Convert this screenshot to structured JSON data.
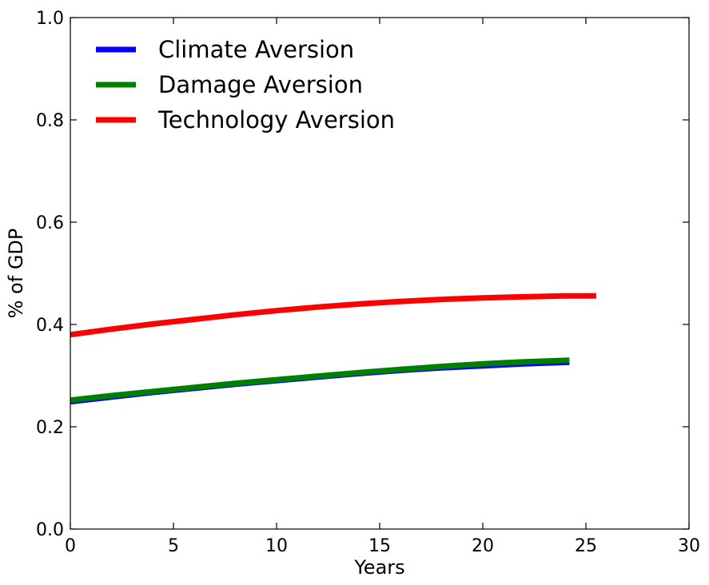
{
  "chart_data": {
    "type": "line",
    "title": "",
    "xlabel": "Years",
    "ylabel": "% of GDP",
    "xlim": [
      0,
      30
    ],
    "ylim": [
      0.0,
      1.0
    ],
    "xticks": [
      "0",
      "5",
      "10",
      "15",
      "20",
      "25",
      "30"
    ],
    "yticks": [
      "0.0",
      "0.2",
      "0.4",
      "0.6",
      "0.8",
      "1.0"
    ],
    "grid": false,
    "legend": "top-left",
    "series": [
      {
        "name": "Climate Aversion",
        "color": "#0000ff",
        "x": [
          0,
          2,
          4,
          6,
          8,
          10,
          12,
          14,
          16,
          18,
          20,
          22,
          24.2
        ],
        "y": [
          0.246,
          0.255,
          0.264,
          0.272,
          0.28,
          0.287,
          0.294,
          0.301,
          0.307,
          0.312,
          0.316,
          0.32,
          0.323
        ]
      },
      {
        "name": "Damage Aversion",
        "color": "#008000",
        "x": [
          0,
          2,
          4,
          6,
          8,
          10,
          12,
          14,
          16,
          18,
          20,
          22,
          24.2
        ],
        "y": [
          0.252,
          0.261,
          0.269,
          0.277,
          0.285,
          0.292,
          0.299,
          0.306,
          0.312,
          0.318,
          0.323,
          0.327,
          0.33
        ]
      },
      {
        "name": "Technology Aversion",
        "color": "#ff0000",
        "x": [
          0,
          2,
          4,
          6,
          8,
          10,
          12,
          14,
          16,
          18,
          20,
          22,
          24,
          25.5
        ],
        "y": [
          0.38,
          0.391,
          0.401,
          0.41,
          0.419,
          0.427,
          0.434,
          0.44,
          0.445,
          0.449,
          0.452,
          0.454,
          0.456,
          0.456
        ]
      }
    ]
  }
}
